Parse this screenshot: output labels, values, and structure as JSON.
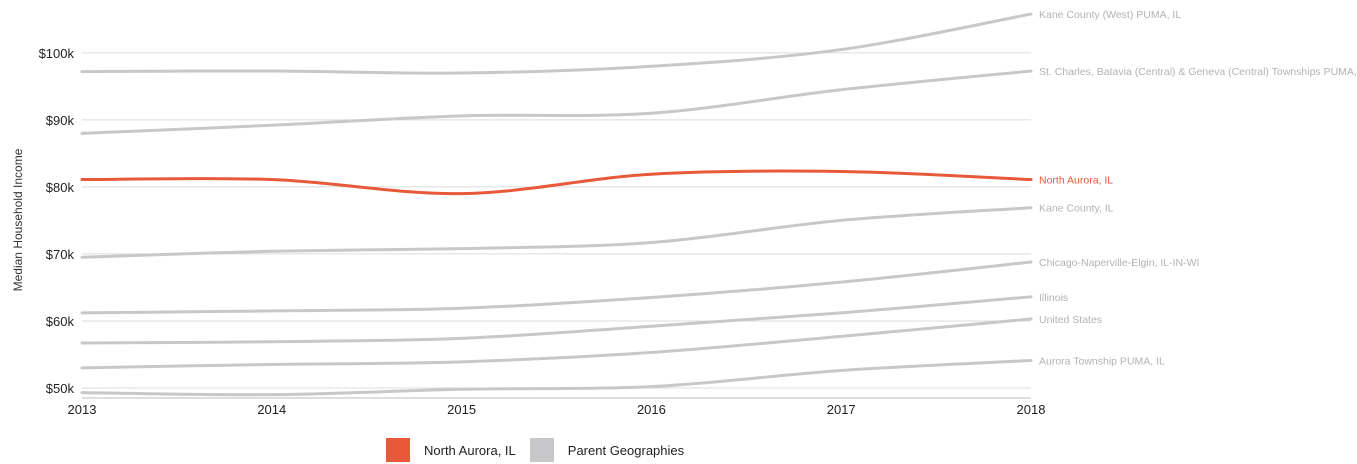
{
  "chart_data": {
    "type": "line",
    "ylabel": "Median Household Income",
    "xlabel": "",
    "x": [
      2013,
      2014,
      2015,
      2016,
      2017,
      2018
    ],
    "x_tick_labels": [
      "2013",
      "2014",
      "2015",
      "2016",
      "2017",
      "2018"
    ],
    "ylim": [
      48500,
      107000
    ],
    "y_ticks": [
      50000,
      60000,
      70000,
      80000,
      90000,
      100000
    ],
    "y_tick_labels": [
      "$50k",
      "$60k",
      "$70k",
      "$80k",
      "$90k",
      "$100k"
    ],
    "grid": true,
    "series": [
      {
        "name": "Kane County (West) PUMA, IL",
        "values": [
          97200,
          97300,
          97000,
          98000,
          100500,
          105800
        ],
        "color": "#c8c8ca",
        "highlight": false
      },
      {
        "name": "St. Charles, Batavia (Central) & Geneva (Central) Townships PUMA, IL",
        "values": [
          88000,
          89200,
          90600,
          91000,
          94500,
          97300
        ],
        "color": "#c8c8ca",
        "highlight": false
      },
      {
        "name": "North Aurora, IL",
        "values": [
          81100,
          81100,
          79000,
          81900,
          82300,
          81100
        ],
        "color": "#e8593a",
        "highlight": true
      },
      {
        "name": "Kane County, IL",
        "values": [
          69500,
          70400,
          70800,
          71700,
          75000,
          76900
        ],
        "color": "#c8c8ca",
        "highlight": false
      },
      {
        "name": "Chicago-Naperville-Elgin, IL-IN-WI",
        "values": [
          61200,
          61500,
          61900,
          63500,
          65800,
          68800
        ],
        "color": "#c8c8ca",
        "highlight": false
      },
      {
        "name": "Illinois",
        "values": [
          56700,
          56900,
          57400,
          59200,
          61200,
          63600
        ],
        "color": "#c8c8ca",
        "highlight": false
      },
      {
        "name": "United States",
        "values": [
          53000,
          53500,
          53900,
          55300,
          57700,
          60300
        ],
        "color": "#c8c8ca",
        "highlight": false
      },
      {
        "name": "Aurora Township PUMA, IL",
        "values": [
          49300,
          49000,
          49800,
          50200,
          52600,
          54100
        ],
        "color": "#c8c8ca",
        "highlight": false
      }
    ]
  },
  "legend": {
    "items": [
      {
        "label": "North Aurora, IL",
        "color": "#e8593a"
      },
      {
        "label": "Parent Geographies",
        "color": "#c8c8ca"
      }
    ]
  }
}
